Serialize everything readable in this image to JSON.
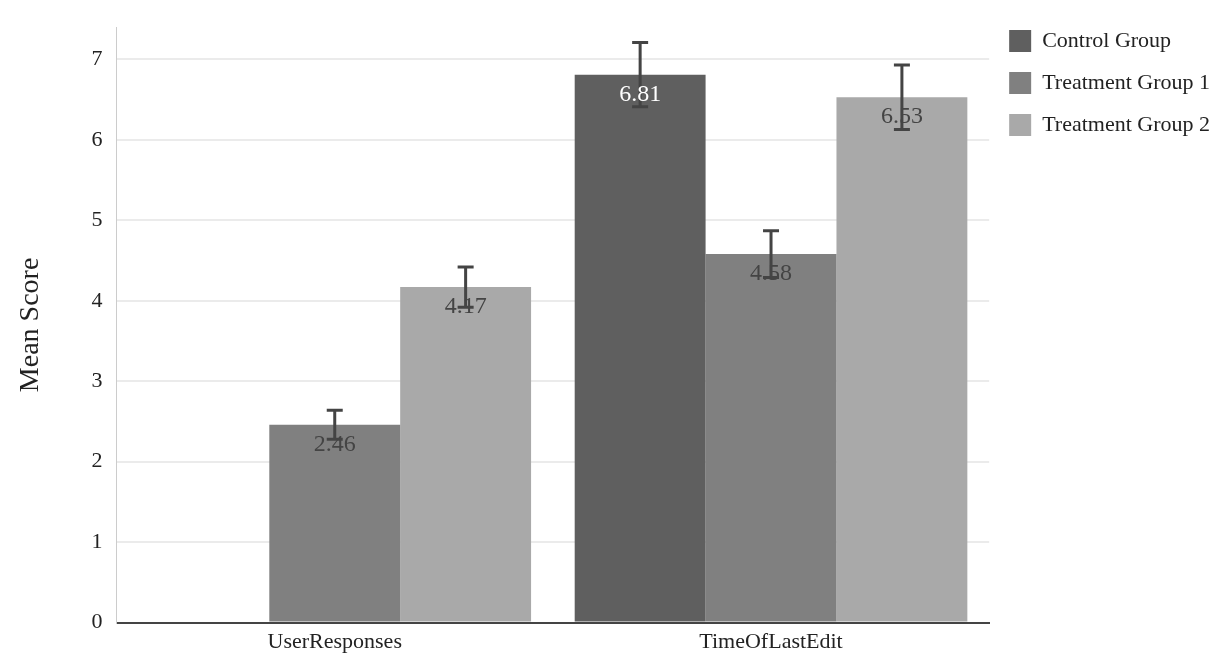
{
  "chart_data": {
    "type": "bar",
    "ylabel": "Mean Score",
    "categories": [
      "UserResponses",
      "TimeOfLastEdit"
    ],
    "series": [
      {
        "name": "Control Group",
        "color": "#5f5f5f",
        "values": [
          0,
          6.81
        ],
        "errors": [
          null,
          0.4
        ],
        "value_labels": [
          null,
          "6.81"
        ]
      },
      {
        "name": "Treatment Group 1",
        "color": "#808080",
        "values": [
          2.46,
          4.58
        ],
        "errors": [
          0.18,
          0.29
        ],
        "value_labels": [
          "2.46",
          "4.58"
        ]
      },
      {
        "name": "Treatment Group 2",
        "color": "#a9a9a9",
        "values": [
          4.17,
          6.53
        ],
        "errors": [
          0.25,
          0.4
        ],
        "value_labels": [
          "4.17",
          "6.53"
        ]
      }
    ],
    "ylim": [
      0,
      7.4
    ],
    "yticks": [
      0,
      1,
      2,
      3,
      4,
      5,
      6,
      7
    ],
    "grid": "y",
    "legend": "top right"
  }
}
